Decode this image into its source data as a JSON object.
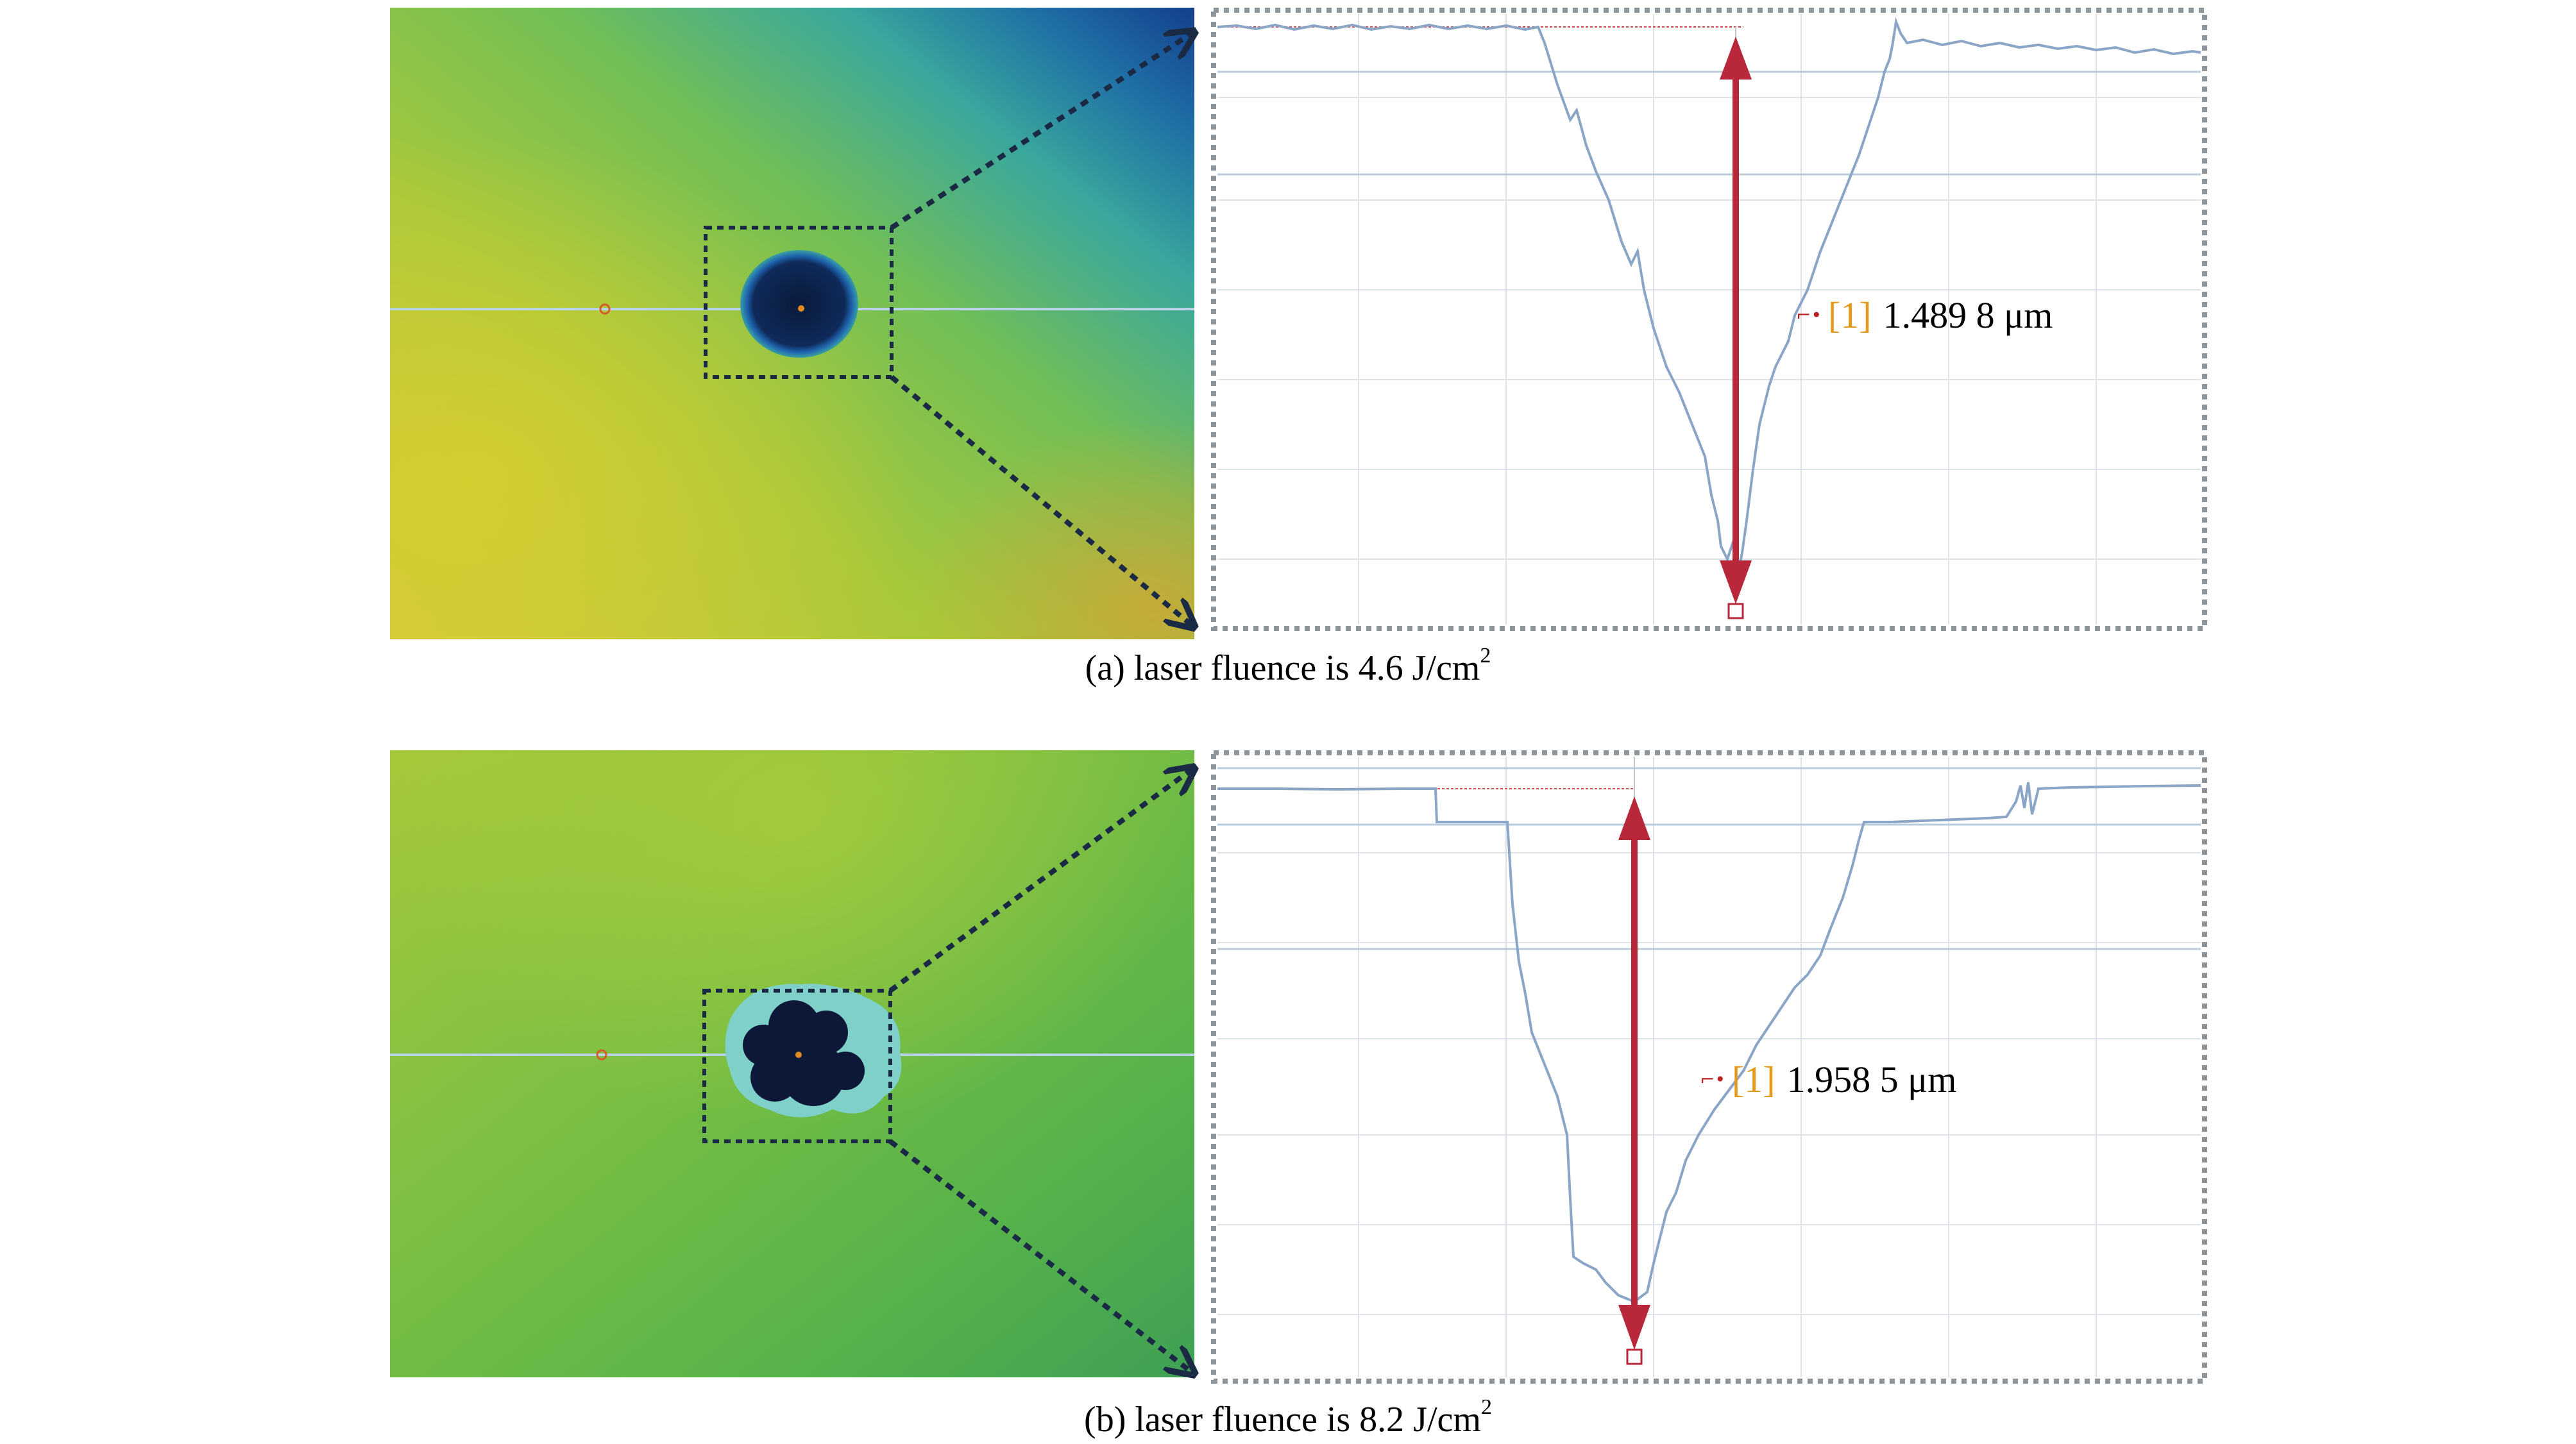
{
  "panels": [
    {
      "id": "a",
      "caption_main": "(a) laser fluence is 4.6 J/cm",
      "caption_sup": "2",
      "measurement_tag": "[1]",
      "measurement_value": "1.489 8 μm"
    },
    {
      "id": "b",
      "caption_main": "(b) laser fluence is 8.2 J/cm",
      "caption_sup": "2",
      "measurement_tag": "[1]",
      "measurement_value": "1.958 5 μm"
    }
  ],
  "colors": {
    "arrow": "#b8273a",
    "profile_line": "#8aa5c6",
    "grid": "#d9dde3",
    "frame": "#8e969c",
    "connector": "#1b2a44"
  }
}
